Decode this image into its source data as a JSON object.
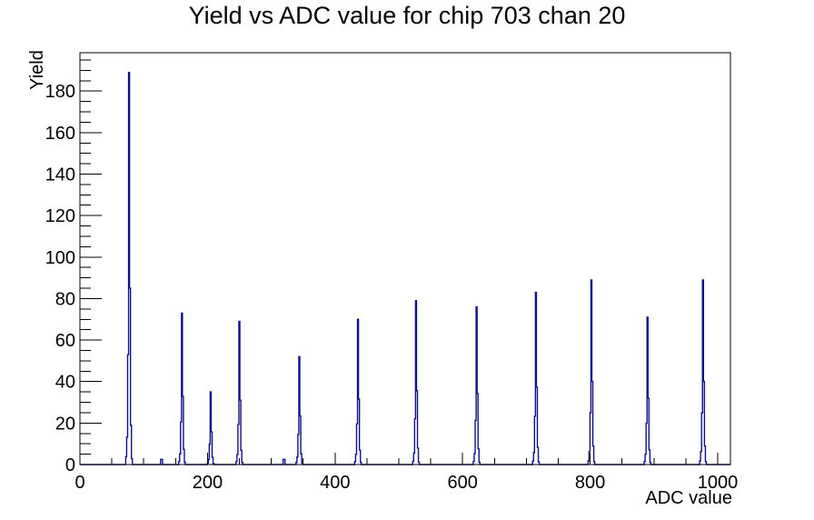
{
  "chart_data": {
    "type": "bar",
    "subtype": "root-histogram-step-line",
    "title": "Yield vs ADC value for chip 703 chan 20",
    "xlabel": "ADC value",
    "ylabel": "Yield",
    "xlim": [
      0,
      1020
    ],
    "ylim": [
      0,
      198.5
    ],
    "x_major_ticks": [
      0,
      200,
      400,
      600,
      800,
      1000
    ],
    "x_minor_step": 50,
    "y_major_ticks": [
      0,
      20,
      40,
      60,
      80,
      100,
      120,
      140,
      160,
      180
    ],
    "y_minor_step": 5,
    "grid": false,
    "legend": "none",
    "line_color": "#10108e",
    "frame_color": "#000000",
    "background_color": "#ffffff",
    "peaks": [
      {
        "adc": 77,
        "yield": 189
      },
      {
        "adc": 160,
        "yield": 73
      },
      {
        "adc": 205,
        "yield": 35
      },
      {
        "adc": 250,
        "yield": 69
      },
      {
        "adc": 344,
        "yield": 52
      },
      {
        "adc": 436,
        "yield": 70
      },
      {
        "adc": 527,
        "yield": 79
      },
      {
        "adc": 622,
        "yield": 76
      },
      {
        "adc": 715,
        "yield": 83
      },
      {
        "adc": 802,
        "yield": 89
      },
      {
        "adc": 890,
        "yield": 71
      },
      {
        "adc": 977,
        "yield": 89
      }
    ],
    "small_bumps": [
      {
        "adc": 128,
        "yield": 2.5
      },
      {
        "adc": 320,
        "yield": 2.5
      }
    ],
    "bin_width_adc": 1.5,
    "peak_profile": [
      0.02,
      0.07,
      0.28,
      1.0,
      0.45,
      0.1,
      0.015
    ]
  }
}
